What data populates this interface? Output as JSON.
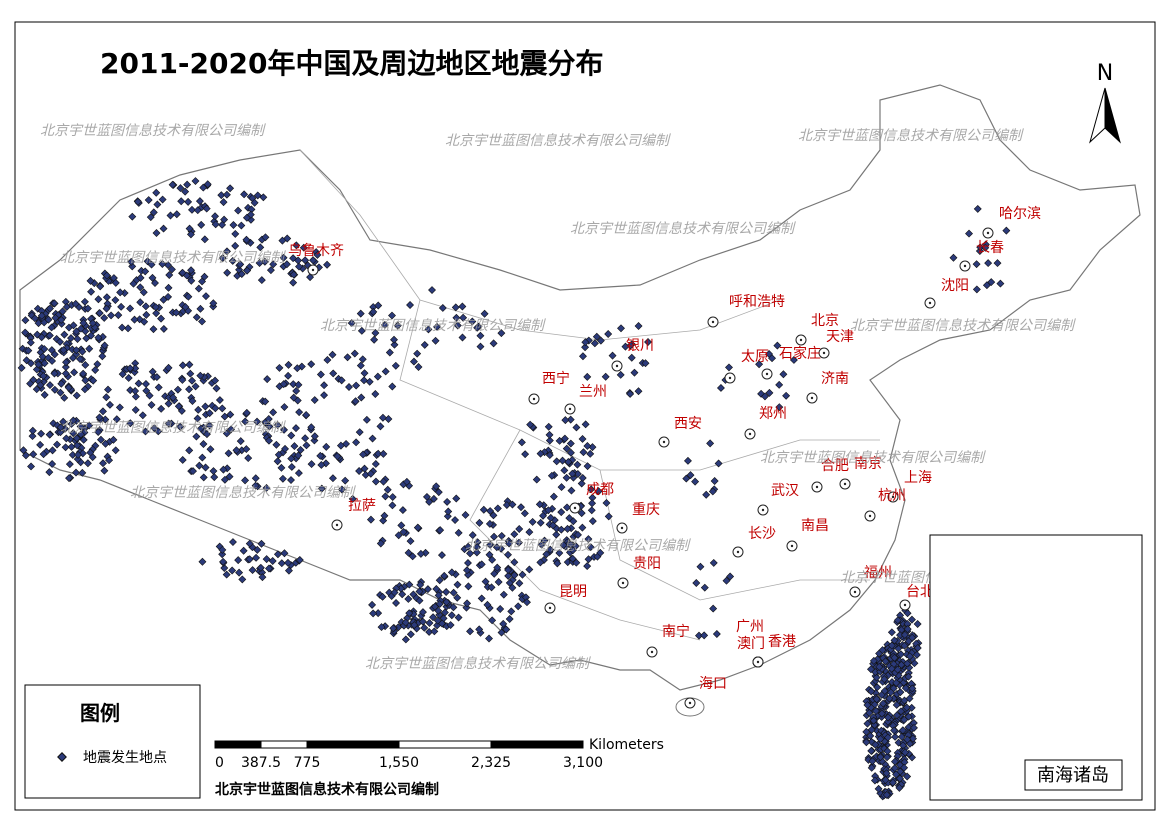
{
  "title": "2011-2020年中国及周边地区地震分布",
  "north": "N",
  "watermark": "北京宇世蓝图信息技术有限公司编制",
  "cities": [
    "乌鲁木齐",
    "哈尔滨",
    "长春",
    "沈阳",
    "呼和浩特",
    "北京",
    "天津",
    "银川",
    "石家庄",
    "太原",
    "济南",
    "西宁",
    "兰州",
    "郑州",
    "西安",
    "合肥",
    "南京",
    "上海",
    "杭州",
    "武汉",
    "成都",
    "重庆",
    "拉萨",
    "南昌",
    "长沙",
    "贵阳",
    "福州",
    "台北",
    "昆明",
    "南宁",
    "广州",
    "澳门",
    "香港",
    "海口"
  ],
  "legend": {
    "title": "图例",
    "item": "地震发生地点"
  },
  "scale_bar": {
    "unit": "Kilometers",
    "ticks": [
      0,
      387.5,
      775,
      {
        "value": 1550,
        "label": "1,550"
      },
      {
        "value": 2325,
        "label": "2,325"
      },
      {
        "value": 3100,
        "label": "3,100"
      }
    ]
  },
  "credit": "北京宇世蓝图信息技术有限公司编制",
  "inset_label": "南海诸岛"
}
